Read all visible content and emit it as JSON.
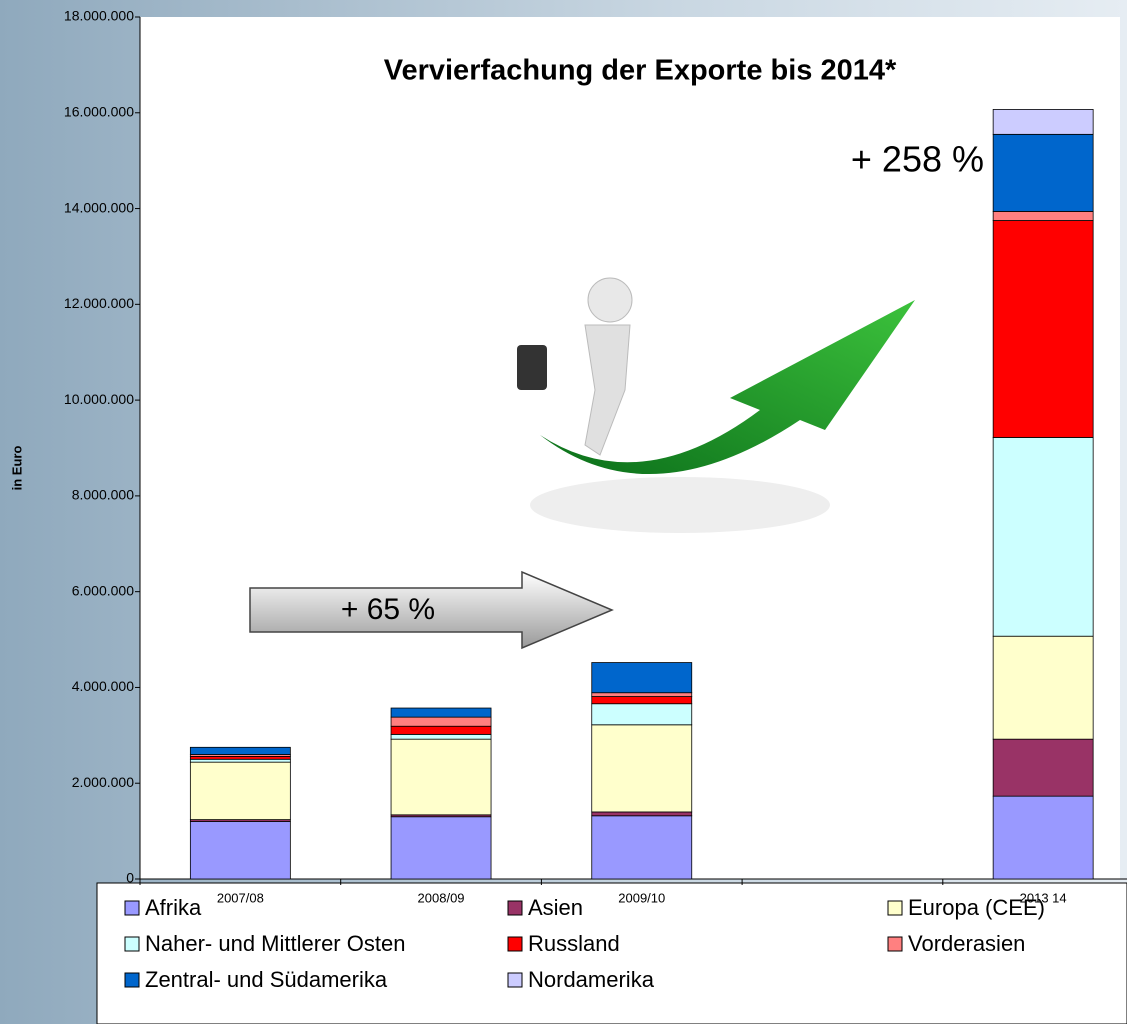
{
  "chart_data": {
    "type": "stacked_bar",
    "title": "Vervierfachung der Exporte bis 2014*",
    "y_label": "in Euro",
    "annotations": [
      "+ 258 %",
      "+ 65 %"
    ],
    "categories": [
      "2007/08",
      "2008/09",
      "2009/10",
      null,
      "2013 14"
    ],
    "series": [
      {
        "name": "Afrika",
        "color": "#9999ff",
        "values": [
          1200000,
          1300000,
          1320000,
          null,
          1730000
        ]
      },
      {
        "name": "Asien",
        "color": "#993366",
        "values": [
          40000,
          40000,
          80000,
          null,
          1190000
        ]
      },
      {
        "name": "Europa (CEE)",
        "color": "#ffffcc",
        "values": [
          1200000,
          1580000,
          1820000,
          null,
          2150000
        ]
      },
      {
        "name": "Naher- und Mittlerer Osten",
        "color": "#ccffff",
        "values": [
          60000,
          100000,
          440000,
          null,
          4150000
        ]
      },
      {
        "name": "Russland",
        "color": "#ff0000",
        "values": [
          60000,
          170000,
          150000,
          null,
          4530000
        ]
      },
      {
        "name": "Vorderasien",
        "color": "#ff8080",
        "values": [
          40000,
          190000,
          80000,
          null,
          190000
        ]
      },
      {
        "name": "Zentral- und Südamerika",
        "color": "#0066cc",
        "values": [
          150000,
          190000,
          630000,
          null,
          1610000
        ]
      },
      {
        "name": "Nordamerika",
        "color": "#ccccff",
        "values": [
          0,
          0,
          0,
          null,
          520000
        ]
      }
    ],
    "ylim": [
      0,
      18000000
    ],
    "yticks": [
      0,
      {
        "value": 2000000,
        "label": "2.000.000"
      },
      {
        "value": 4000000,
        "label": "4.000.000"
      },
      {
        "value": 6000000,
        "label": "6.000.000"
      },
      {
        "value": 8000000,
        "label": "8.000.000"
      },
      {
        "value": 10000000,
        "label": "10.000.000"
      },
      {
        "value": 12000000,
        "label": "12.000.000"
      },
      {
        "value": 14000000,
        "label": "14.000.000"
      },
      {
        "value": 16000000,
        "label": "16.000.000"
      },
      {
        "value": 18000000,
        "label": "18.000.000"
      }
    ],
    "grid": false
  }
}
